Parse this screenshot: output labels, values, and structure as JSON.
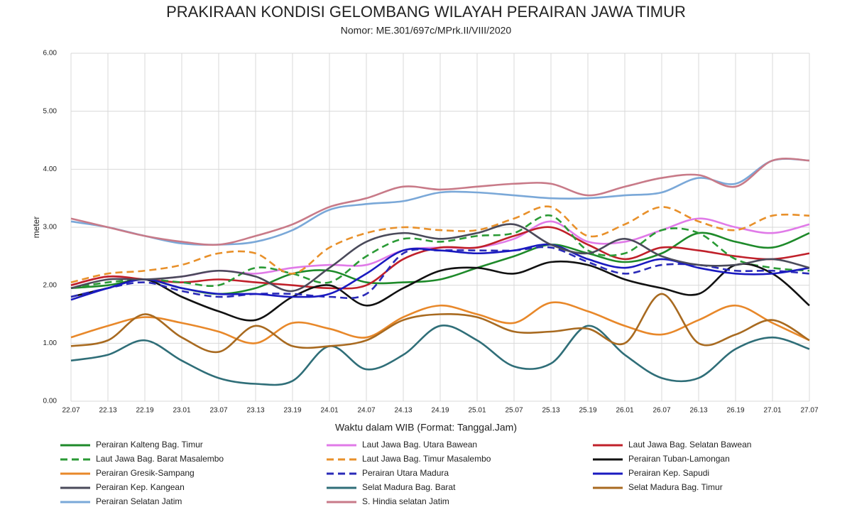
{
  "chart_data": {
    "type": "line",
    "title": "PRAKIRAAN KONDISI GELOMBANG WILAYAH PERAIRAN JAWA TIMUR",
    "subtitle": "Nomor: ME.301/697c/MPrk.II/VIII/2020",
    "y_label": "meter",
    "x_label": "Waktu dalam WIB (Format: Tanggal.Jam)",
    "categories": [
      "22.07",
      "22.13",
      "22.19",
      "23.01",
      "23.07",
      "23.13",
      "23.19",
      "24.01",
      "24.07",
      "24.13",
      "24.19",
      "25.01",
      "25.07",
      "25.13",
      "25.19",
      "26.01",
      "26.07",
      "26.13",
      "26.19",
      "27.01",
      "27.07"
    ],
    "ylim": [
      0,
      6
    ],
    "yticks": [
      {
        "value": 0,
        "label": "0.00"
      },
      {
        "value": 1,
        "label": "1.00"
      },
      {
        "value": 2,
        "label": "2.00"
      },
      {
        "value": 3,
        "label": "3.00"
      },
      {
        "value": 4,
        "label": "4.00"
      },
      {
        "value": 5,
        "label": "5.00"
      },
      {
        "value": 6,
        "label": "6.00"
      }
    ],
    "grid": true,
    "series": [
      {
        "name": "Perairan Kalteng Bag. Timur",
        "color": "#1e8a2a",
        "dashed": false,
        "values": [
          1.95,
          2.0,
          2.1,
          1.95,
          1.85,
          1.95,
          2.2,
          2.25,
          2.05,
          2.05,
          2.1,
          2.3,
          2.5,
          2.7,
          2.55,
          2.4,
          2.55,
          2.9,
          2.75,
          2.65,
          2.9
        ]
      },
      {
        "name": "Laut Jawa Bag. Utara Bawean",
        "color": "#e07ae8",
        "dashed": false,
        "values": [
          2.0,
          2.15,
          2.1,
          2.15,
          2.25,
          2.2,
          2.3,
          2.35,
          2.35,
          2.6,
          2.65,
          2.65,
          2.8,
          3.1,
          2.75,
          2.75,
          2.95,
          3.15,
          3.0,
          2.9,
          3.05
        ]
      },
      {
        "name": "Laut Jawa Bag. Selatan Bawean",
        "color": "#c0202a",
        "dashed": false,
        "values": [
          2.0,
          2.15,
          2.1,
          2.05,
          2.1,
          2.05,
          2.0,
          1.95,
          2.0,
          2.45,
          2.65,
          2.65,
          2.85,
          3.0,
          2.7,
          2.45,
          2.65,
          2.6,
          2.5,
          2.45,
          2.55
        ]
      },
      {
        "name": "Laut Jawa Bag. Barat Masalembo",
        "color": "#2a9a35",
        "dashed": true,
        "values": [
          1.95,
          2.05,
          2.1,
          2.05,
          2.0,
          2.3,
          2.2,
          2.05,
          2.5,
          2.8,
          2.75,
          2.85,
          2.9,
          3.2,
          2.6,
          2.55,
          2.95,
          2.9,
          2.45,
          2.3,
          2.25
        ]
      },
      {
        "name": "Laut Jawa Bag. Timur Masalembo",
        "color": "#e8902a",
        "dashed": true,
        "values": [
          2.05,
          2.2,
          2.25,
          2.35,
          2.55,
          2.55,
          2.2,
          2.65,
          2.9,
          3.0,
          2.95,
          2.95,
          3.15,
          3.35,
          2.85,
          3.05,
          3.35,
          3.1,
          2.95,
          3.2,
          3.2
        ]
      },
      {
        "name": "Perairan Tuban-Lamongan",
        "color": "#111111",
        "dashed": false,
        "values": [
          1.8,
          1.95,
          2.1,
          1.8,
          1.55,
          1.4,
          1.8,
          2.0,
          1.65,
          1.95,
          2.25,
          2.3,
          2.2,
          2.4,
          2.35,
          2.1,
          1.95,
          1.85,
          2.35,
          2.2,
          1.65
        ]
      },
      {
        "name": "Perairan Gresik-Sampang",
        "color": "#e8882a",
        "dashed": false,
        "values": [
          1.1,
          1.3,
          1.45,
          1.35,
          1.2,
          1.0,
          1.35,
          1.25,
          1.1,
          1.45,
          1.65,
          1.5,
          1.35,
          1.7,
          1.55,
          1.3,
          1.15,
          1.4,
          1.65,
          1.35,
          1.05
        ]
      },
      {
        "name": "Perairan Utara Madura",
        "color": "#2a2ab8",
        "dashed": true,
        "values": [
          1.8,
          1.95,
          2.05,
          1.9,
          1.8,
          1.85,
          1.85,
          1.8,
          1.85,
          2.55,
          2.6,
          2.6,
          2.6,
          2.65,
          2.4,
          2.2,
          2.35,
          2.35,
          2.25,
          2.25,
          2.2
        ]
      },
      {
        "name": "Perairan Kep. Sapudi",
        "color": "#1a1ac0",
        "dashed": false,
        "values": [
          1.75,
          1.95,
          2.1,
          1.95,
          1.85,
          1.85,
          1.8,
          1.85,
          2.2,
          2.6,
          2.6,
          2.55,
          2.6,
          2.7,
          2.45,
          2.3,
          2.45,
          2.3,
          2.2,
          2.2,
          2.3
        ]
      },
      {
        "name": "Perairan Kep. Kangean",
        "color": "#4a4a5a",
        "dashed": false,
        "values": [
          1.95,
          2.1,
          2.1,
          2.15,
          2.25,
          2.15,
          1.9,
          2.3,
          2.75,
          2.9,
          2.8,
          2.9,
          3.05,
          2.7,
          2.55,
          2.8,
          2.5,
          2.35,
          2.35,
          2.45,
          2.3
        ]
      },
      {
        "name": "Selat Madura Bag. Barat",
        "color": "#2f6e78",
        "dashed": false,
        "values": [
          0.7,
          0.8,
          1.05,
          0.7,
          0.4,
          0.3,
          0.35,
          0.95,
          0.55,
          0.8,
          1.3,
          1.05,
          0.6,
          0.65,
          1.3,
          0.8,
          0.4,
          0.4,
          0.9,
          1.1,
          0.9
        ]
      },
      {
        "name": "Selat Madura Bag. Timur",
        "color": "#a86a20",
        "dashed": false,
        "values": [
          0.95,
          1.05,
          1.5,
          1.1,
          0.85,
          1.3,
          0.95,
          0.95,
          1.05,
          1.4,
          1.5,
          1.45,
          1.2,
          1.2,
          1.25,
          1.0,
          1.85,
          1.0,
          1.15,
          1.4,
          1.05
        ]
      },
      {
        "name": "Perairan Selatan Jatim",
        "color": "#7aa8d8",
        "dashed": false,
        "values": [
          3.1,
          3.0,
          2.85,
          2.72,
          2.7,
          2.75,
          2.95,
          3.3,
          3.4,
          3.45,
          3.6,
          3.6,
          3.55,
          3.5,
          3.5,
          3.55,
          3.6,
          3.85,
          3.75,
          4.15,
          4.15
        ]
      },
      {
        "name": "S. Hindia selatan Jatim",
        "color": "#c87a88",
        "dashed": false,
        "values": [
          3.15,
          3.0,
          2.85,
          2.75,
          2.7,
          2.85,
          3.05,
          3.35,
          3.5,
          3.7,
          3.65,
          3.7,
          3.75,
          3.75,
          3.55,
          3.7,
          3.85,
          3.9,
          3.7,
          4.15,
          4.15
        ]
      }
    ]
  }
}
